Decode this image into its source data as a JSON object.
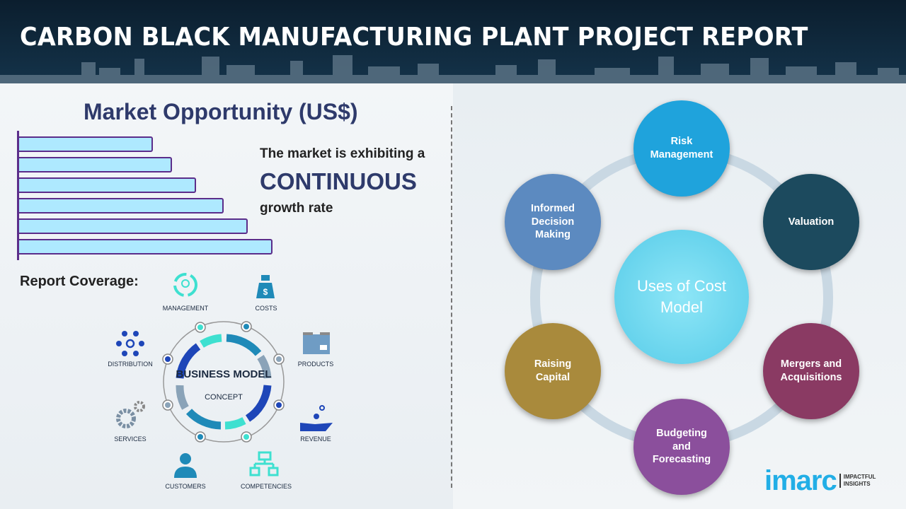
{
  "header": {
    "title": "CARBON BLACK MANUFACTURING PLANT PROJECT REPORT"
  },
  "market": {
    "title": "Market Opportunity (US$)",
    "bar_levels": [
      0.49,
      0.56,
      0.65,
      0.75,
      0.84,
      0.93
    ],
    "line1": "The market is exhibiting a",
    "line2": "CONTINUOUS",
    "line3": "growth rate"
  },
  "coverage": {
    "label": "Report Coverage:",
    "center_title": "BUSINESS MODEL",
    "center_sub": "CONCEPT",
    "items": [
      "MANAGEMENT",
      "COSTS",
      "PRODUCTS",
      "REVENUE",
      "COMPETENCIES",
      "CUSTOMERS",
      "SERVICES",
      "DISTRIBUTION"
    ]
  },
  "cost_model": {
    "center": "Uses of Cost Model",
    "items": [
      {
        "label": "Risk Management",
        "color": "#1fa3dc"
      },
      {
        "label": "Valuation",
        "color": "#1c4a5e"
      },
      {
        "label": "Mergers and Acquisitions",
        "color": "#8a3a63"
      },
      {
        "label": "Budgeting and Forecasting",
        "color": "#8b4f9c"
      },
      {
        "label": "Raising Capital",
        "color": "#a98a3c"
      },
      {
        "label": "Informed Decision Making",
        "color": "#5c8ac0"
      }
    ]
  },
  "logo": {
    "word": "imarc",
    "tag1": "IMPACTFUL",
    "tag2": "INSIGHTS"
  }
}
